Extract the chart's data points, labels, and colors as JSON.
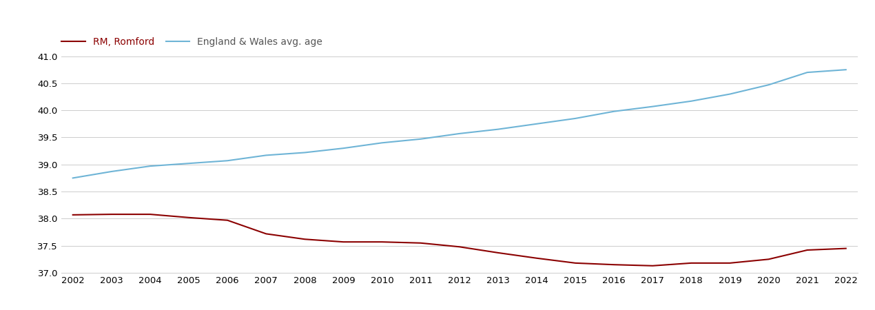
{
  "years": [
    2002,
    2003,
    2004,
    2005,
    2006,
    2007,
    2008,
    2009,
    2010,
    2011,
    2012,
    2013,
    2014,
    2015,
    2016,
    2017,
    2018,
    2019,
    2020,
    2021,
    2022
  ],
  "romford": [
    38.07,
    38.08,
    38.08,
    38.02,
    37.97,
    37.72,
    37.62,
    37.57,
    37.57,
    37.55,
    37.48,
    37.37,
    37.27,
    37.18,
    37.15,
    37.13,
    37.18,
    37.18,
    37.25,
    37.42,
    37.45
  ],
  "england_wales": [
    38.75,
    38.87,
    38.97,
    39.02,
    39.07,
    39.17,
    39.22,
    39.3,
    39.4,
    39.47,
    39.57,
    39.65,
    39.75,
    39.85,
    39.98,
    40.07,
    40.17,
    40.3,
    40.47,
    40.7,
    40.75
  ],
  "romford_color": "#8B0000",
  "england_wales_color": "#6EB4D6",
  "background_color": "#ffffff",
  "grid_color": "#cccccc",
  "romford_label": "RM, Romford",
  "england_wales_label": "England & Wales avg. age",
  "ylim": [
    37.0,
    41.35
  ],
  "yticks": [
    37.0,
    37.5,
    38.0,
    38.5,
    39.0,
    39.5,
    40.0,
    40.5,
    41.0
  ],
  "line_width": 1.5,
  "figsize": [
    12.7,
    4.5
  ],
  "dpi": 100,
  "tick_fontsize": 9.5,
  "legend_fontsize": 10
}
